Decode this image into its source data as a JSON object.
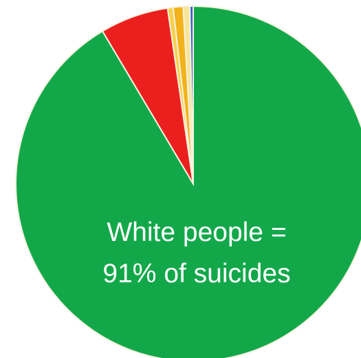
{
  "chart_data": {
    "type": "pie",
    "title": "",
    "slices": [
      {
        "value": 91.0,
        "color": "#12a84a"
      },
      {
        "value": 6.2,
        "color": "#ec1f1f"
      },
      {
        "value": 0.5,
        "color": "#f6d14b"
      },
      {
        "value": 0.9,
        "color": "#f2b21b"
      },
      {
        "value": 0.6,
        "color": "#f7e59a"
      },
      {
        "value": 0.3,
        "color": "#2f63c9"
      }
    ],
    "annotation_lines": [
      "White people =",
      "91% of suicides"
    ]
  }
}
